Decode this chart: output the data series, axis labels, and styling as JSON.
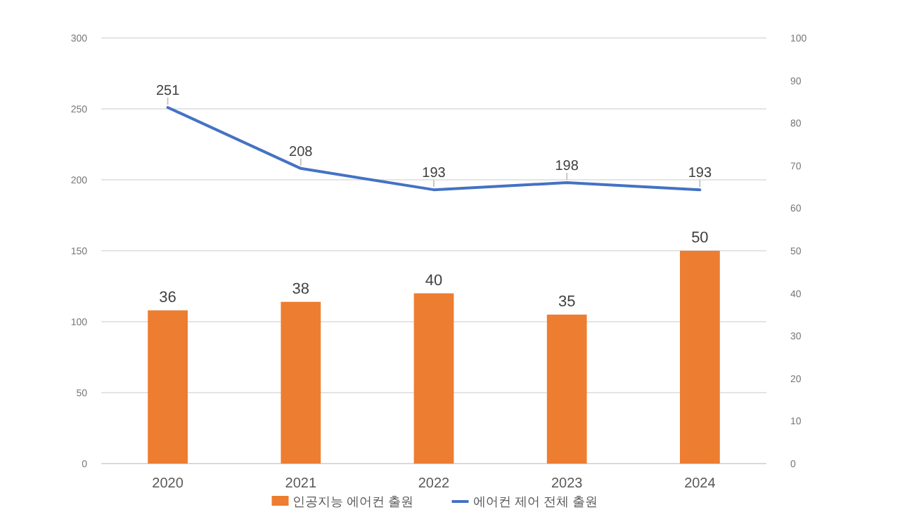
{
  "chart_data": {
    "type": "bar",
    "categories": [
      "2020",
      "2021",
      "2022",
      "2023",
      "2024"
    ],
    "series": [
      {
        "name": "인공지능 에어컨 출원",
        "axis": "y2",
        "color": "#ed7d31",
        "values": [
          36,
          38,
          40,
          35,
          50
        ]
      },
      {
        "name": "에어컨 제어 전체 출원",
        "type": "line",
        "color": "#4472c4",
        "values": [
          251,
          208,
          193,
          198,
          193
        ]
      }
    ],
    "ylim": [
      0,
      300
    ],
    "yticks": [
      0,
      50,
      100,
      150,
      200,
      250,
      300
    ],
    "y2lim": [
      0,
      100
    ],
    "y2ticks": [
      0,
      10,
      20,
      30,
      40,
      50,
      60,
      70,
      80,
      90,
      100
    ],
    "grid": "y",
    "legend": "bottom",
    "data_labels": true
  }
}
